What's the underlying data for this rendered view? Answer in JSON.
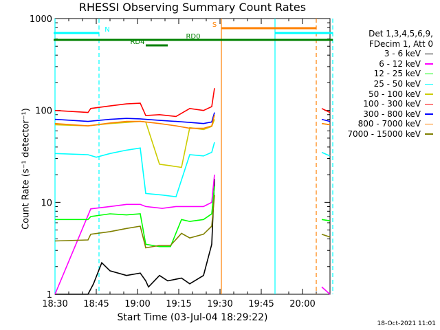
{
  "chart_data": {
    "type": "line",
    "title": "RHESSI Observing Summary Count Rates",
    "xlabel": "Start Time (03-Jul-04 18:29:22)",
    "ylabel": "Count Rate (s⁻¹ detector⁻¹)",
    "y_scale": "log",
    "ylim": [
      1,
      1000
    ],
    "xlim_minutes": [
      0,
      100
    ],
    "x_tick_labels": [
      "18:30",
      "18:45",
      "19:00",
      "19:15",
      "19:30",
      "19:45",
      "20:00"
    ],
    "x_tick_minutes": [
      0,
      15,
      30,
      45,
      60,
      75,
      90
    ],
    "y_tick_labels": [
      "1",
      "10",
      "100",
      "1000"
    ],
    "y_tick_values": [
      1,
      10,
      100,
      1000
    ],
    "grid": false,
    "legend_position": "right",
    "legend_header": [
      "Det 1,3,4,5,6,9,",
      "FDecim 1, Att 0"
    ],
    "series": [
      {
        "name": "3 - 6 keV",
        "color": "#000000",
        "x": [
          0,
          12,
          14,
          17,
          20,
          26,
          31,
          33,
          34,
          38,
          41,
          46,
          49,
          54,
          57,
          58
        ],
        "values": [
          1,
          1,
          1.3,
          2.2,
          1.8,
          1.6,
          1.7,
          1.4,
          1.2,
          1.6,
          1.4,
          1.5,
          1.3,
          1.6,
          3.5,
          18
        ]
      },
      {
        "name": "6 - 12 keV",
        "color": "#ff00ff",
        "x": [
          0,
          13,
          20,
          26,
          31,
          33,
          39,
          44,
          49,
          54,
          57,
          58
        ],
        "values": [
          1,
          8.5,
          9,
          9.5,
          9.5,
          9,
          8.6,
          9,
          9,
          9,
          10,
          20
        ]
      },
      {
        "name": "12 - 25 keV",
        "color": "#00ff00",
        "x": [
          0,
          12,
          13,
          20,
          26,
          31,
          33,
          38,
          42,
          46,
          49,
          54,
          57,
          58
        ],
        "values": [
          6.5,
          6.5,
          7,
          7.5,
          7.3,
          7.5,
          3.5,
          3.3,
          3.3,
          6.5,
          6.2,
          6.5,
          7.5,
          15
        ]
      },
      {
        "name": "25 - 50 keV",
        "color": "#00ffff",
        "x": [
          0,
          12,
          15,
          20,
          26,
          31,
          33,
          39,
          44,
          49,
          54,
          57,
          58
        ],
        "values": [
          34,
          33,
          31,
          34,
          37,
          39,
          12.5,
          12,
          11.5,
          33,
          32,
          35,
          45
        ]
      },
      {
        "name": "50 - 100 keV",
        "color": "#cccc00",
        "x": [
          0,
          12,
          20,
          26,
          31,
          33,
          38,
          42,
          46,
          49,
          54,
          57,
          58
        ],
        "values": [
          70,
          68,
          72,
          74,
          76,
          75,
          26,
          25,
          24,
          65,
          62,
          67,
          80
        ]
      },
      {
        "name": "100 - 300 keV",
        "color": "#ff0000",
        "x": [
          0,
          12,
          13,
          20,
          26,
          31,
          33,
          38,
          44,
          49,
          54,
          57,
          58
        ],
        "values": [
          100,
          95,
          105,
          112,
          118,
          120,
          88,
          90,
          86,
          105,
          100,
          110,
          175
        ]
      },
      {
        "name": "300 - 800 keV",
        "color": "#0000ff",
        "x": [
          0,
          12,
          20,
          26,
          31,
          33,
          38,
          44,
          49,
          54,
          57,
          58
        ],
        "values": [
          80,
          76,
          80,
          82,
          81,
          80,
          78,
          76,
          74,
          72,
          75,
          95
        ]
      },
      {
        "name": "800 - 7000 keV",
        "color": "#ff8000",
        "x": [
          0,
          12,
          20,
          26,
          31,
          33,
          38,
          44,
          49,
          54,
          57,
          58
        ],
        "values": [
          72,
          68,
          73,
          76,
          76,
          75,
          72,
          68,
          64,
          64,
          68,
          90
        ]
      },
      {
        "name": "7000 - 15000 keV",
        "color": "#808000",
        "x": [
          0,
          12,
          13,
          20,
          26,
          31,
          33,
          38,
          42,
          46,
          49,
          54,
          57,
          58
        ],
        "values": [
          3.8,
          3.9,
          4.5,
          4.8,
          5.2,
          5.5,
          3.2,
          3.4,
          3.4,
          4.6,
          4.1,
          4.5,
          5.5,
          12
        ]
      }
    ],
    "series_after_gap": {
      "x": [
        97,
        100
      ],
      "values_by_series": {
        "6 - 12 keV": [
          1.2,
          1
        ],
        "12 - 25 keV": [
          6.5,
          6.3
        ],
        "25 - 50 keV": [
          35,
          32
        ],
        "50 - 100 keV": [
          72,
          70
        ],
        "100 - 300 keV": [
          105,
          95
        ],
        "300 - 800 keV": [
          80,
          76
        ],
        "800 - 7000 keV": [
          72,
          70
        ],
        "7000 - 15000 keV": [
          4.5,
          4.2
        ]
      }
    },
    "vertical_markers": [
      {
        "minute": 0,
        "color": "#00ffff",
        "style": "solid"
      },
      {
        "minute": 16,
        "color": "#00ffff",
        "style": "dashed"
      },
      {
        "minute": 60.5,
        "color": "#ff8000",
        "style": "solid"
      },
      {
        "minute": 80,
        "color": "#00ffff",
        "style": "solid"
      },
      {
        "minute": 95,
        "color": "#ff8000",
        "style": "dashed"
      },
      {
        "minute": 101,
        "color": "#00ffff",
        "style": "dashed"
      }
    ],
    "flag_bars": [
      {
        "label": "N",
        "color": "#00ffff",
        "x_start": -0.5,
        "x_end": 16,
        "level": 1
      },
      {
        "label": "N",
        "color": "#00ffff",
        "x_start": 80,
        "x_end": 101,
        "level": 1,
        "unlabeled": true
      },
      {
        "label": "S",
        "color": "#ff8000",
        "x_start": 60.5,
        "x_end": 95,
        "level": 0
      },
      {
        "label": "RD0",
        "color": "#008000",
        "x_start": -0.5,
        "x_end": 101,
        "level": 2
      },
      {
        "label": "RD4",
        "color": "#008000",
        "x_start": 33,
        "x_end": 41,
        "level": 3
      }
    ]
  },
  "footer": {
    "timestamp": "18-Oct-2021 11:01"
  }
}
